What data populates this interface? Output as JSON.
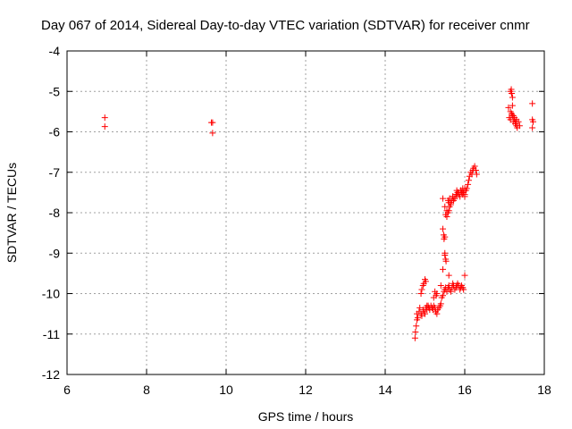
{
  "chart_data": {
    "type": "scatter",
    "title": "Day 067 of 2014, Sidereal Day-to-day VTEC variation (SDTVAR) for receiver cnmr",
    "xlabel": "GPS time / hours",
    "ylabel": "SDTVAR / TECUs",
    "xlim": [
      6,
      18
    ],
    "ylim": [
      -12,
      -4
    ],
    "xticks": [
      6,
      8,
      10,
      12,
      14,
      16,
      18
    ],
    "yticks": [
      -4,
      -5,
      -6,
      -7,
      -8,
      -9,
      -10,
      -11,
      -12
    ],
    "xtick_labels": [
      "6",
      "8",
      "10",
      "12",
      "14",
      "16",
      "18"
    ],
    "ytick_labels": [
      "-4",
      "-5",
      "-6",
      "-7",
      "-8",
      "-9",
      "-10",
      "-11",
      "-12"
    ],
    "grid": true,
    "legend": "none",
    "marker": "plus",
    "color": "#ff0000",
    "series": [
      {
        "x": [
          6.95,
          6.95,
          9.63,
          9.66,
          9.66,
          14.75,
          14.76,
          14.78,
          14.8,
          14.8,
          14.82,
          14.85,
          14.87,
          14.9,
          14.92,
          14.95,
          14.97,
          15.0,
          15.02,
          15.05,
          15.08,
          15.1,
          15.12,
          15.15,
          15.18,
          15.2,
          15.22,
          15.25,
          15.27,
          15.3,
          15.32,
          15.35,
          15.38,
          15.4,
          15.42,
          15.45,
          15.48,
          15.5,
          15.52,
          15.55,
          15.58,
          15.6,
          15.62,
          15.65,
          15.68,
          15.7,
          15.72,
          15.75,
          15.78,
          15.8,
          15.82,
          15.85,
          15.88,
          15.9,
          15.92,
          15.95,
          15.97,
          16.0,
          14.95,
          14.97,
          15.0,
          15.02,
          14.92,
          14.9,
          15.05,
          15.3,
          15.28,
          15.25,
          15.22,
          15.5,
          15.53,
          15.6,
          15.4,
          15.45,
          15.45,
          15.5,
          15.52,
          15.55,
          15.58,
          15.6,
          15.62,
          15.65,
          15.68,
          15.7,
          15.72,
          15.75,
          15.78,
          15.8,
          15.82,
          15.85,
          15.88,
          15.9,
          15.92,
          15.95,
          15.97,
          16.0,
          16.03,
          16.05,
          16.08,
          16.1,
          16.12,
          16.15,
          16.18,
          16.2,
          16.22,
          16.25,
          16.28,
          16.3,
          15.45,
          15.47,
          15.48,
          15.5,
          15.5,
          15.52,
          15.55,
          15.58,
          15.6,
          15.62,
          15.65,
          15.7,
          15.75,
          15.8,
          15.85,
          15.9,
          15.95,
          16.0,
          15.95,
          16.0,
          17.1,
          17.12,
          17.15,
          17.15,
          17.17,
          17.18,
          17.2,
          17.2,
          17.22,
          17.25,
          17.25,
          17.27,
          17.28,
          17.3,
          17.3,
          17.32,
          17.35,
          17.38,
          17.15,
          17.18,
          17.2,
          17.22,
          17.7,
          17.7,
          17.72,
          17.7
        ],
        "y": [
          -5.65,
          -5.87,
          -5.77,
          -5.77,
          -6.03,
          -11.1,
          -10.95,
          -10.8,
          -10.65,
          -10.5,
          -10.6,
          -10.45,
          -10.35,
          -10.5,
          -10.55,
          -10.4,
          -10.45,
          -10.5,
          -10.35,
          -10.4,
          -10.3,
          -10.35,
          -10.4,
          -10.3,
          -10.35,
          -10.4,
          -10.3,
          -10.35,
          -10.45,
          -10.5,
          -10.4,
          -10.35,
          -10.3,
          -10.25,
          -10.1,
          -10.05,
          -9.95,
          -9.9,
          -9.85,
          -9.95,
          -9.85,
          -9.8,
          -9.9,
          -9.95,
          -9.85,
          -9.75,
          -9.8,
          -9.9,
          -9.85,
          -9.8,
          -9.75,
          -9.8,
          -9.9,
          -9.85,
          -9.8,
          -9.85,
          -9.9,
          -9.55,
          -9.8,
          -9.75,
          -9.65,
          -9.7,
          -9.9,
          -10.0,
          -10.3,
          -10.0,
          -10.05,
          -9.95,
          -10.1,
          -9.0,
          -9.2,
          -9.55,
          -9.8,
          -9.4,
          -7.65,
          -7.85,
          -8.05,
          -7.95,
          -7.7,
          -7.75,
          -7.65,
          -7.8,
          -7.7,
          -7.6,
          -7.7,
          -7.65,
          -7.55,
          -7.45,
          -7.5,
          -7.55,
          -7.6,
          -7.45,
          -7.5,
          -7.4,
          -7.5,
          -7.55,
          -7.45,
          -7.4,
          -7.3,
          -7.2,
          -7.1,
          -7.0,
          -7.05,
          -6.95,
          -6.9,
          -6.85,
          -6.95,
          -7.05,
          -8.4,
          -8.55,
          -8.65,
          -8.6,
          -9.05,
          -9.15,
          -8.1,
          -8.0,
          -7.95,
          -7.85,
          -7.75,
          -7.6,
          -7.65,
          -7.55,
          -7.5,
          -7.45,
          -7.55,
          -7.6,
          -7.5,
          -7.4,
          -5.4,
          -5.65,
          -5.7,
          -5.0,
          -4.95,
          -5.05,
          -5.15,
          -5.6,
          -5.75,
          -5.65,
          -5.7,
          -5.8,
          -5.75,
          -5.85,
          -5.7,
          -5.9,
          -5.75,
          -5.85,
          -5.5,
          -5.55,
          -5.35,
          -5.6,
          -5.3,
          -5.7,
          -5.75,
          -5.9
        ]
      }
    ]
  }
}
